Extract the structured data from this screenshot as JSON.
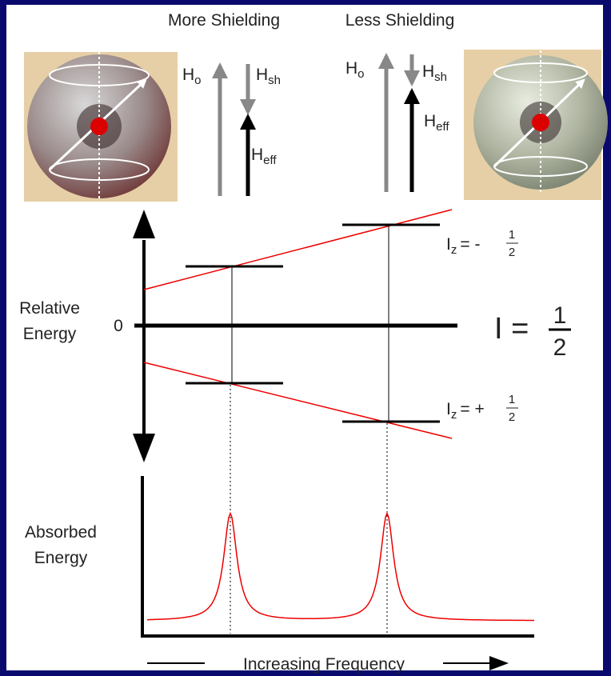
{
  "header": {
    "more": "More Shielding",
    "less": "Less Shielding"
  },
  "field": {
    "symbol": "H",
    "applied": "o",
    "shielding": "sh",
    "effective": "eff"
  },
  "energy_axis": {
    "label": [
      "Relative",
      "Energy"
    ],
    "zero": "0"
  },
  "levels": {
    "upper": {
      "symbol": "I",
      "sub": "z",
      "sign": "= -",
      "numerator": "1",
      "denominator": "2"
    },
    "lower": {
      "symbol": "I",
      "sub": "z",
      "sign": "= +",
      "numerator": "1",
      "denominator": "2"
    }
  },
  "spin": {
    "symbol": "I =",
    "numerator": "1",
    "denominator": "2"
  },
  "absorption": {
    "label": [
      "Absorbed",
      "Energy"
    ]
  },
  "x_axis": {
    "label": "Increasing Frequency"
  }
}
